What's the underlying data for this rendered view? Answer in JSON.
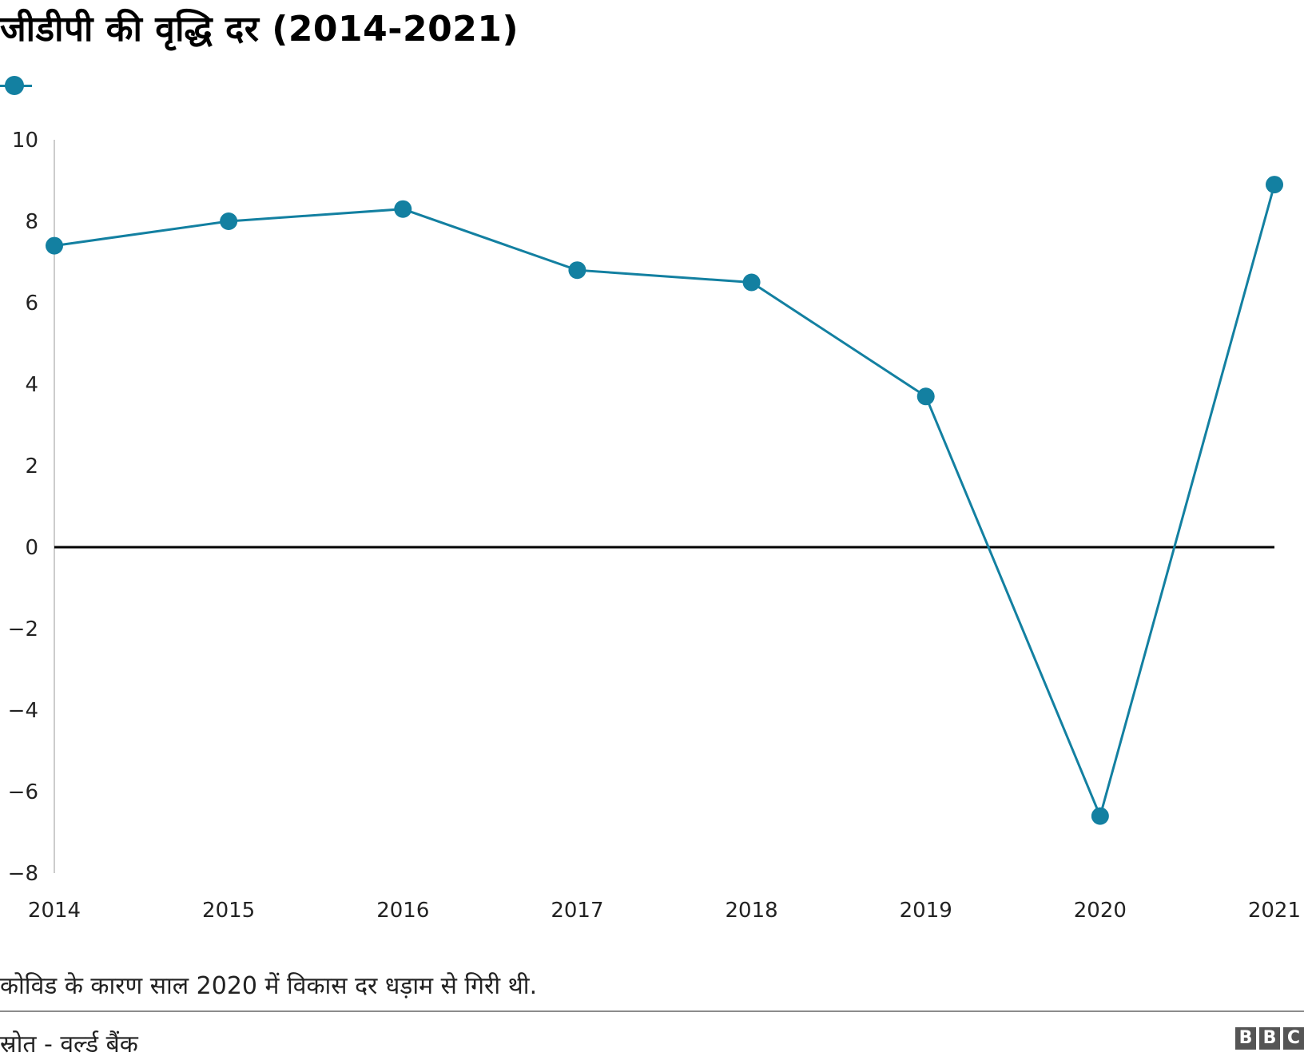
{
  "title": "जीडीपी की वृद्धि दर (2014-2021)",
  "note": "कोविड के कारण साल 2020 में विकास दर धड़ाम से गिरी थी.",
  "source": "स्रोत - वर्ल्ड बैंक",
  "logo": [
    "B",
    "B",
    "C"
  ],
  "colors": {
    "series": "#1380a1",
    "zero_line": "#000000",
    "axis": "#cccccc"
  },
  "chart_data": {
    "type": "line",
    "x": [
      2014,
      2015,
      2016,
      2017,
      2018,
      2019,
      2020,
      2021
    ],
    "series": [
      {
        "values": [
          7.4,
          8.0,
          8.3,
          6.8,
          6.5,
          3.7,
          -6.6,
          8.9
        ]
      }
    ],
    "ylim": [
      -8,
      10
    ],
    "yticks": [
      "10",
      "8",
      "6",
      "4",
      "2",
      "0",
      "−2",
      "−4",
      "−6",
      "−8"
    ],
    "ytick_values": [
      10,
      8,
      6,
      4,
      2,
      0,
      -2,
      -4,
      -6,
      -8
    ],
    "xticks": [
      "2014",
      "2015",
      "2016",
      "2017",
      "2018",
      "2019",
      "2020",
      "2021"
    ],
    "grid": false,
    "legend": "top-left"
  }
}
